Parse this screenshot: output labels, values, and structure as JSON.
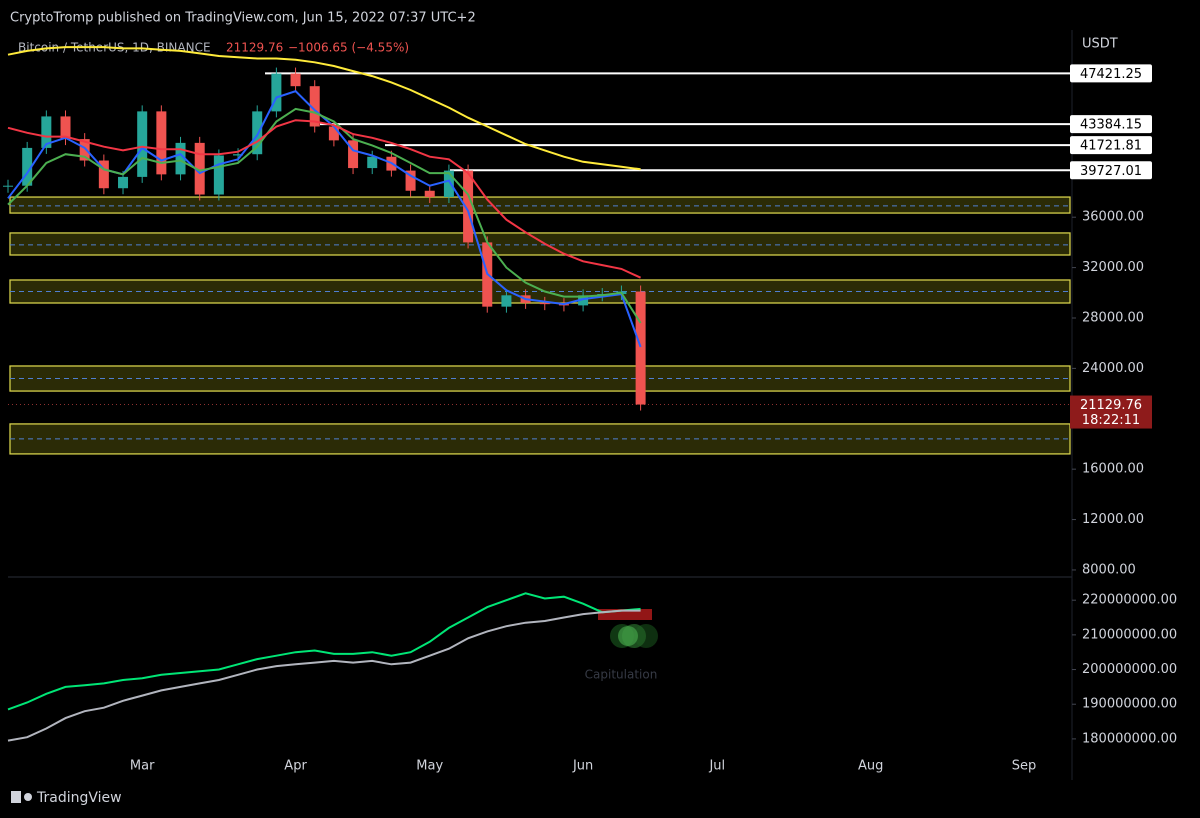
{
  "header": {
    "text": "CryptoTromp published on TradingView.com, Jun 15, 2022 07:37 UTC+2"
  },
  "footer": {
    "brand": "TradingView"
  },
  "chart_data": [
    {
      "type": "candlestick",
      "symbol": "Bitcoin / TetherUS, 1D, BINANCE",
      "change_label": "−1006.65 (−4.55%)",
      "y_label": "USDT",
      "categories": [
        null,
        null,
        null,
        null,
        null,
        null,
        null,
        "Mar",
        null,
        null,
        null,
        null,
        null,
        null,
        null,
        "Apr",
        null,
        null,
        null,
        null,
        null,
        null,
        "May",
        null,
        null,
        null,
        null,
        null,
        null,
        null,
        "Jun",
        null,
        null,
        null,
        null,
        null,
        null,
        "Jul",
        null,
        null,
        null,
        null,
        null,
        null,
        null,
        "Aug",
        null,
        null,
        null,
        null,
        null,
        null,
        null,
        "Sep",
        null
      ],
      "values": [
        38500,
        41500,
        44000,
        42200,
        40500,
        38300,
        39200,
        44400,
        39400,
        41900,
        37800,
        40900,
        41000,
        44400,
        47400,
        46400,
        43200,
        42100,
        39900,
        40800,
        39700,
        38100,
        37600,
        39700,
        34000,
        28900,
        29800,
        29200,
        29100,
        29000,
        29800,
        29900,
        30100,
        21129.76,
        null,
        null,
        null,
        null,
        null,
        null,
        null,
        null,
        null,
        null,
        null,
        null,
        null,
        null,
        null,
        null,
        null,
        null,
        null,
        null,
        null
      ],
      "up_color": "#26a69a",
      "down_color": "#ef5350",
      "series": [
        {
          "color": "#2962ff",
          "values": [
            37500,
            39500,
            41800,
            42300,
            41500,
            39800,
            39400,
            41500,
            40500,
            41000,
            39500,
            40200,
            40600,
            42500,
            45500,
            46000,
            44500,
            43200,
            41300,
            40900,
            40300,
            39300,
            38500,
            38900,
            36500,
            31500,
            30200,
            29500,
            29300,
            29100,
            29500,
            29700,
            29900,
            25700,
            null,
            null,
            null,
            null,
            null,
            null,
            null,
            null,
            null,
            null,
            null,
            null,
            null,
            null,
            null,
            null,
            null,
            null,
            null,
            null,
            null
          ]
        },
        {
          "color": "#4caf50",
          "values": [
            37000,
            38500,
            40300,
            41000,
            40800,
            39800,
            39400,
            40700,
            40300,
            40500,
            39700,
            40000,
            40300,
            41600,
            43600,
            44600,
            44300,
            43600,
            42200,
            41700,
            41100,
            40300,
            39500,
            39500,
            37800,
            34000,
            32000,
            30800,
            30100,
            29700,
            29700,
            29800,
            30000,
            27600,
            null,
            null,
            null,
            null,
            null,
            null,
            null,
            null,
            null,
            null,
            null,
            null,
            null,
            null,
            null,
            null,
            null,
            null,
            null,
            null,
            null
          ]
        },
        {
          "color": "#f23645",
          "values": [
            43100,
            42700,
            42400,
            42400,
            42000,
            41600,
            41300,
            41600,
            41400,
            41400,
            41000,
            41000,
            41200,
            42000,
            43200,
            43700,
            43600,
            43300,
            42600,
            42300,
            41900,
            41400,
            40800,
            40600,
            39500,
            37400,
            35800,
            34800,
            33900,
            33100,
            32500,
            32200,
            31900,
            31200,
            null,
            null,
            null,
            null,
            null,
            null,
            null,
            null,
            null,
            null,
            null,
            null,
            null,
            null,
            null,
            null,
            null,
            null,
            null,
            null,
            null
          ]
        },
        {
          "color": "#ffeb3b",
          "values": [
            48900,
            49200,
            49400,
            49500,
            49500,
            49500,
            49400,
            49400,
            49300,
            49200,
            49000,
            48800,
            48700,
            48600,
            48600,
            48500,
            48300,
            48000,
            47600,
            47200,
            46700,
            46100,
            45400,
            44700,
            43900,
            43200,
            42500,
            41800,
            41300,
            40800,
            40400,
            40200,
            40000,
            39800,
            null,
            null,
            null,
            null,
            null,
            null,
            null,
            null,
            null,
            null,
            null,
            null,
            null,
            null,
            null,
            null,
            null,
            null,
            null,
            null,
            null
          ]
        }
      ],
      "levels": [
        47421.25,
        43384.15,
        41721.81,
        39727.01
      ],
      "zones": [
        {
          "low": 36330,
          "high": 37600,
          "mid": 36900
        },
        {
          "low": 33000,
          "high": 34750,
          "mid": 33800
        },
        {
          "low": 29190,
          "high": 31016,
          "mid": 30100
        },
        {
          "low": 22200,
          "high": 24190,
          "mid": 23200
        },
        {
          "low": 17210,
          "high": 19590,
          "mid": 18400
        }
      ],
      "last": 21129.76,
      "countdown": "18:22:11",
      "ylim": [
        7440,
        50860
      ],
      "yticks": [
        {
          "value": 8000,
          "label": "8000.00"
        },
        {
          "value": 12000,
          "label": "12000.00"
        },
        {
          "value": 16000,
          "label": "16000.00"
        },
        {
          "value": 24000,
          "label": "24000.00"
        },
        {
          "value": 28000,
          "label": "28000.00"
        },
        {
          "value": 32000,
          "label": "32000.00"
        },
        {
          "value": 36000,
          "label": "36000.00"
        }
      ]
    },
    {
      "type": "line",
      "annotation": "Capitulation",
      "series": [
        {
          "color": "#00e676",
          "values": [
            188500000,
            190500000,
            193000000,
            195000000,
            195500000,
            196000000,
            197000000,
            197500000,
            198500000,
            199000000,
            199500000,
            200000000,
            201500000,
            203000000,
            204000000,
            205000000,
            205500000,
            204500000,
            204500000,
            205000000,
            204000000,
            205000000,
            208000000,
            212000000,
            215000000,
            218000000,
            220000000,
            222000000,
            220500000,
            221000000,
            219000000,
            216500000,
            217000000,
            217500000,
            null,
            null,
            null,
            null,
            null,
            null,
            null,
            null,
            null,
            null,
            null,
            null,
            null,
            null,
            null,
            null,
            null,
            null,
            null,
            null,
            null
          ]
        },
        {
          "color": "#b2b5be",
          "values": [
            179500000,
            180500000,
            183000000,
            186000000,
            188000000,
            189000000,
            191000000,
            192500000,
            194000000,
            195000000,
            196000000,
            197000000,
            198500000,
            200000000,
            201000000,
            201500000,
            202000000,
            202500000,
            202000000,
            202500000,
            201500000,
            202000000,
            204000000,
            206000000,
            209000000,
            211000000,
            212500000,
            213500000,
            214000000,
            215000000,
            216000000,
            216500000,
            217000000,
            217000000,
            null,
            null,
            null,
            null,
            null,
            null,
            null,
            null,
            null,
            null,
            null,
            null,
            null,
            null,
            null,
            null,
            null,
            null,
            null,
            null,
            null
          ]
        }
      ],
      "ylim": [
        176800000,
        226400000
      ],
      "yticks": [
        {
          "value": 180000000,
          "label": "180000000.00"
        },
        {
          "value": 190000000,
          "label": "190000000.00"
        },
        {
          "value": 200000000,
          "label": "200000000.00"
        },
        {
          "value": 210000000,
          "label": "210000000.00"
        },
        {
          "value": 220000000,
          "label": "220000000.00"
        }
      ]
    }
  ]
}
